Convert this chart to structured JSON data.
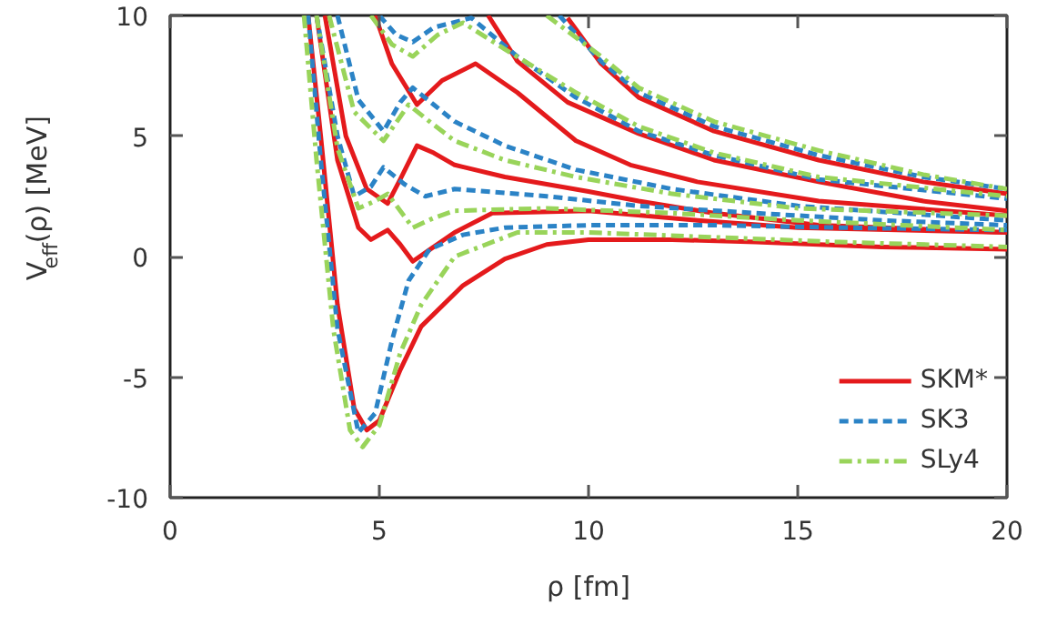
{
  "chart_data": {
    "type": "line",
    "xlabel": "ρ [fm]",
    "ylabel": "V$_{eff}$(ρ) [MeV]",
    "xlim": [
      0,
      20
    ],
    "ylim": [
      -10,
      10
    ],
    "xticks": [
      0,
      5,
      10,
      15,
      20
    ],
    "yticks": [
      -10,
      -5,
      0,
      5,
      10
    ],
    "grid": false,
    "legend": "bottom right",
    "marker": "none",
    "series": [
      {
        "name": "SKM*",
        "color": "#e41a1c",
        "line_style": "solid",
        "x": [
          3.3,
          3.6,
          4.0,
          4.4,
          4.7,
          5.0,
          5.5,
          6,
          7,
          8,
          9,
          10,
          12,
          14,
          17,
          20
        ],
        "values": [
          10,
          5,
          -2,
          -6.3,
          -7.2,
          -6.8,
          -4.7,
          -2.9,
          -1.2,
          -0.1,
          0.5,
          0.7,
          0.7,
          0.6,
          0.4,
          0.3
        ]
      },
      {
        "color": "#e41a1c",
        "line_style": "solid",
        "x": [
          3.5,
          4.0,
          4.5,
          4.8,
          5.2,
          5.5,
          5.8,
          6.3,
          6.8,
          7.7,
          10,
          12.6,
          15,
          20
        ],
        "values": [
          10,
          4,
          1.2,
          0.7,
          1.1,
          0.5,
          -0.2,
          0.4,
          1.0,
          1.8,
          1.9,
          1.5,
          1.2,
          1.0
        ]
      },
      {
        "color": "#e41a1c",
        "line_style": "solid",
        "x": [
          3.7,
          4.2,
          4.7,
          5.2,
          5.5,
          5.9,
          6.3,
          6.8,
          8,
          10,
          11.2,
          13,
          15.5,
          20
        ],
        "values": [
          10,
          5,
          2.8,
          2.2,
          3.2,
          4.6,
          4.3,
          3.8,
          3.3,
          2.7,
          2.3,
          1.8,
          1.3,
          1.0
        ]
      },
      {
        "color": "#e41a1c",
        "line_style": "solid",
        "x": [
          4.9,
          5.3,
          5.9,
          6.5,
          7.3,
          8.3,
          9.7,
          11,
          12.6,
          15.5,
          20
        ],
        "values": [
          10,
          8,
          6.3,
          7.3,
          8,
          6.8,
          4.8,
          3.8,
          3.1,
          2.3,
          1.7
        ]
      },
      {
        "color": "#e41a1c",
        "line_style": "solid",
        "x": [
          7.6,
          8.3,
          9.5,
          11.2,
          13,
          15.5,
          18,
          20
        ],
        "values": [
          10,
          8.1,
          6.4,
          5.1,
          4.0,
          3.1,
          2.3,
          1.9
        ]
      },
      {
        "color": "#e41a1c",
        "line_style": "solid",
        "x": [
          9.5,
          10.3,
          11.2,
          13,
          15.5,
          18,
          20
        ],
        "values": [
          9.9,
          8.0,
          6.6,
          5.2,
          4.0,
          3.1,
          2.6
        ]
      },
      {
        "name": "SK3",
        "color": "#2b83c6",
        "line_style": "dashed",
        "x": [
          3.3,
          3.6,
          4.0,
          4.5,
          4.9,
          5.3,
          5.7,
          6.2,
          7,
          8,
          10,
          13,
          16,
          20
        ],
        "values": [
          10,
          4,
          -3,
          -7.3,
          -6.5,
          -3.5,
          -1,
          0.3,
          0.9,
          1.2,
          1.3,
          1.3,
          1.2,
          1.1
        ]
      },
      {
        "color": "#2b83c6",
        "line_style": "dashed",
        "x": [
          3.5,
          4.0,
          4.4,
          4.8,
          5.1,
          5.6,
          6.1,
          6.8,
          9,
          11.2,
          14,
          17,
          20
        ],
        "values": [
          10,
          5,
          2.5,
          2.9,
          3.7,
          3.0,
          2.5,
          2.8,
          2.5,
          2.1,
          1.8,
          1.5,
          1.3
        ]
      },
      {
        "color": "#2b83c6",
        "line_style": "dashed",
        "x": [
          4.0,
          4.5,
          5.1,
          5.5,
          5.8,
          6.3,
          6.8,
          8,
          9.7,
          12,
          15,
          20
        ],
        "values": [
          10,
          6.5,
          5.2,
          6.4,
          7.0,
          6.3,
          5.6,
          4.6,
          3.6,
          2.8,
          2.1,
          1.5
        ]
      },
      {
        "color": "#2b83c6",
        "line_style": "dashed",
        "x": [
          5.0,
          5.4,
          5.8,
          6.3,
          7.2,
          8.3,
          9.7,
          11.2,
          13,
          15.5,
          20
        ],
        "values": [
          10,
          9.2,
          8.9,
          9.5,
          9.9,
          8.3,
          6.6,
          5.2,
          4.2,
          3.2,
          2.4
        ]
      },
      {
        "color": "#2b83c6",
        "line_style": "dashed",
        "x": [
          9.3,
          10.3,
          11.2,
          13,
          15.5,
          18,
          20
        ],
        "values": [
          10,
          8.1,
          6.8,
          5.4,
          4.2,
          3.3,
          2.8
        ]
      },
      {
        "name": "SLy4",
        "color": "#99d45a",
        "line_style": "dashdot",
        "x": [
          3.2,
          3.5,
          3.9,
          4.3,
          4.6,
          5.0,
          5.5,
          6,
          6.8,
          8.3,
          10,
          13,
          16,
          20
        ],
        "values": [
          10,
          4,
          -3,
          -7.2,
          -7.9,
          -7.0,
          -4,
          -2,
          0,
          1.0,
          1.0,
          0.8,
          0.6,
          0.4
        ]
      },
      {
        "color": "#99d45a",
        "line_style": "dashdot",
        "x": [
          3.5,
          4.0,
          4.5,
          4.9,
          5.2,
          5.8,
          6.3,
          6.8,
          9,
          12,
          15,
          20
        ],
        "values": [
          10,
          4.5,
          2.0,
          2.3,
          2.6,
          1.2,
          1.6,
          1.9,
          2.0,
          1.8,
          1.5,
          1.1
        ]
      },
      {
        "color": "#99d45a",
        "line_style": "dashdot",
        "x": [
          3.8,
          4.4,
          5.1,
          5.7,
          6.2,
          6.8,
          8,
          9.7,
          12,
          15,
          20
        ],
        "values": [
          10,
          6.0,
          4.8,
          6.3,
          5.6,
          4.8,
          4.0,
          3.3,
          2.6,
          2.0,
          1.7
        ]
      },
      {
        "color": "#99d45a",
        "line_style": "dashdot",
        "x": [
          4.8,
          5.3,
          5.8,
          6.4,
          7.0,
          8.0,
          9.7,
          11.2,
          13,
          15.5,
          20
        ],
        "values": [
          10,
          8.8,
          8.3,
          9.2,
          9.7,
          8.6,
          6.8,
          5.4,
          4.3,
          3.3,
          2.5
        ]
      },
      {
        "color": "#99d45a",
        "line_style": "dashdot",
        "x": [
          9.0,
          10.3,
          11.2,
          13,
          15.5,
          18,
          20
        ],
        "values": [
          10,
          8.3,
          7.0,
          5.6,
          4.4,
          3.4,
          2.8
        ]
      }
    ]
  }
}
